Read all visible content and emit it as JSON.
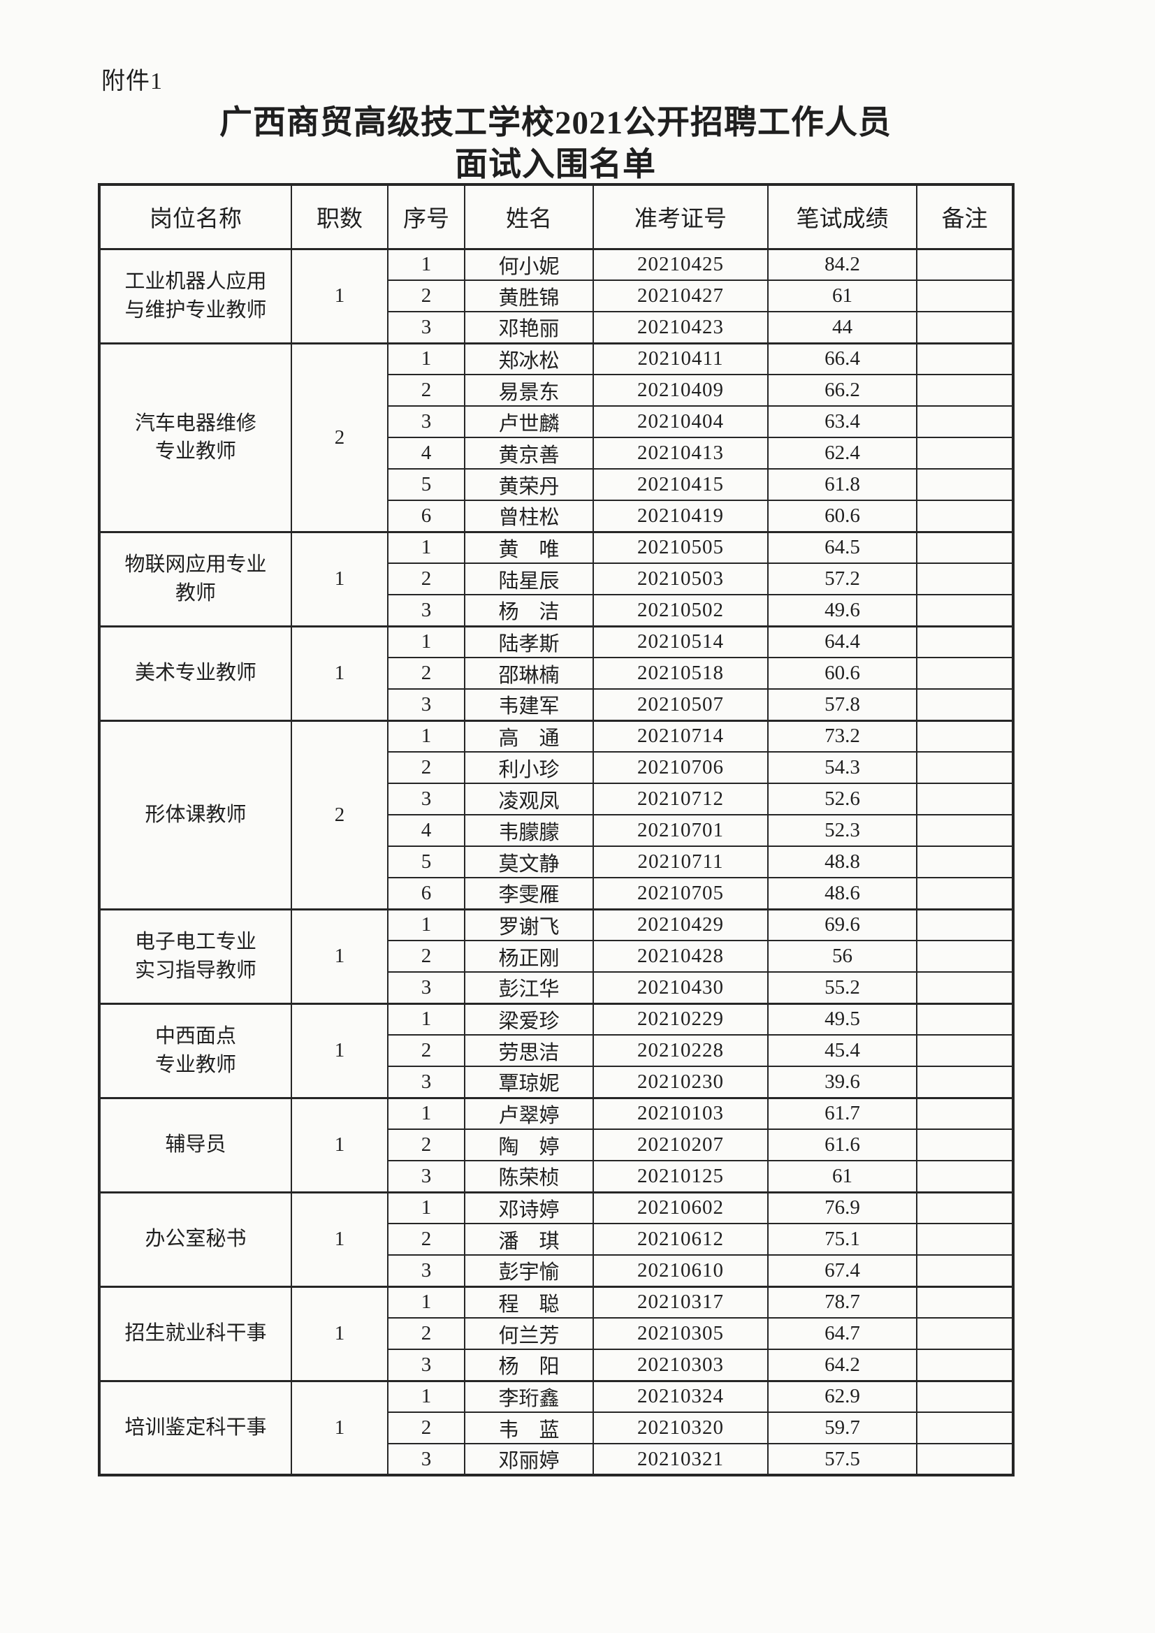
{
  "page": {
    "attachment_label": "附件1",
    "title_line1": "广西商贸高级技工学校2021公开招聘工作人员",
    "title_line2": "面试入围名单"
  },
  "colors": {
    "ink": "#1f1f1f",
    "border": "#262626",
    "paper": "#fbfbf9"
  },
  "table": {
    "headers": [
      "岗位名称",
      "职数",
      "序号",
      "姓名",
      "准考证号",
      "笔试成绩",
      "备注"
    ],
    "groups": [
      {
        "position": "工业机器人应用与维护专业教师",
        "position_lines": [
          "工业机器人应用",
          "与维护专业教师"
        ],
        "quota": "1",
        "candidates": [
          {
            "no": "1",
            "name": "何小妮",
            "ticket": "20210425",
            "score": "84.2",
            "remark": ""
          },
          {
            "no": "2",
            "name": "黄胜锦",
            "ticket": "20210427",
            "score": "61",
            "remark": ""
          },
          {
            "no": "3",
            "name": "邓艳丽",
            "ticket": "20210423",
            "score": "44",
            "remark": ""
          }
        ]
      },
      {
        "position": "汽车电器维修专业教师",
        "position_lines": [
          "汽车电器维修",
          "专业教师"
        ],
        "quota": "2",
        "candidates": [
          {
            "no": "1",
            "name": "郑冰松",
            "ticket": "20210411",
            "score": "66.4",
            "remark": ""
          },
          {
            "no": "2",
            "name": "易景东",
            "ticket": "20210409",
            "score": "66.2",
            "remark": ""
          },
          {
            "no": "3",
            "name": "卢世麟",
            "ticket": "20210404",
            "score": "63.4",
            "remark": ""
          },
          {
            "no": "4",
            "name": "黄京善",
            "ticket": "20210413",
            "score": "62.4",
            "remark": ""
          },
          {
            "no": "5",
            "name": "黄荣丹",
            "ticket": "20210415",
            "score": "61.8",
            "remark": ""
          },
          {
            "no": "6",
            "name": "曾柱松",
            "ticket": "20210419",
            "score": "60.6",
            "remark": ""
          }
        ]
      },
      {
        "position": "物联网应用专业教师",
        "position_lines": [
          "物联网应用专业",
          "教师"
        ],
        "quota": "1",
        "candidates": [
          {
            "no": "1",
            "name": "黄　唯",
            "ticket": "20210505",
            "score": "64.5",
            "remark": ""
          },
          {
            "no": "2",
            "name": "陆星辰",
            "ticket": "20210503",
            "score": "57.2",
            "remark": ""
          },
          {
            "no": "3",
            "name": "杨　洁",
            "ticket": "20210502",
            "score": "49.6",
            "remark": ""
          }
        ]
      },
      {
        "position": "美术专业教师",
        "position_lines": [
          "美术专业教师"
        ],
        "quota": "1",
        "candidates": [
          {
            "no": "1",
            "name": "陆孝斯",
            "ticket": "20210514",
            "score": "64.4",
            "remark": ""
          },
          {
            "no": "2",
            "name": "邵琳楠",
            "ticket": "20210518",
            "score": "60.6",
            "remark": ""
          },
          {
            "no": "3",
            "name": "韦建军",
            "ticket": "20210507",
            "score": "57.8",
            "remark": ""
          }
        ]
      },
      {
        "position": "形体课教师",
        "position_lines": [
          "形体课教师"
        ],
        "quota": "2",
        "candidates": [
          {
            "no": "1",
            "name": "高　通",
            "ticket": "20210714",
            "score": "73.2",
            "remark": ""
          },
          {
            "no": "2",
            "name": "利小珍",
            "ticket": "20210706",
            "score": "54.3",
            "remark": ""
          },
          {
            "no": "3",
            "name": "凌观凤",
            "ticket": "20210712",
            "score": "52.6",
            "remark": ""
          },
          {
            "no": "4",
            "name": "韦朦朦",
            "ticket": "20210701",
            "score": "52.3",
            "remark": ""
          },
          {
            "no": "5",
            "name": "莫文静",
            "ticket": "20210711",
            "score": "48.8",
            "remark": ""
          },
          {
            "no": "6",
            "name": "李雯雁",
            "ticket": "20210705",
            "score": "48.6",
            "remark": ""
          }
        ]
      },
      {
        "position": "电子电工专业实习指导教师",
        "position_lines": [
          "电子电工专业",
          "实习指导教师"
        ],
        "quota": "1",
        "candidates": [
          {
            "no": "1",
            "name": "罗谢飞",
            "ticket": "20210429",
            "score": "69.6",
            "remark": ""
          },
          {
            "no": "2",
            "name": "杨正刚",
            "ticket": "20210428",
            "score": "56",
            "remark": ""
          },
          {
            "no": "3",
            "name": "彭江华",
            "ticket": "20210430",
            "score": "55.2",
            "remark": ""
          }
        ]
      },
      {
        "position": "中西面点专业教师",
        "position_lines": [
          "中西面点",
          "专业教师"
        ],
        "quota": "1",
        "candidates": [
          {
            "no": "1",
            "name": "梁爱珍",
            "ticket": "20210229",
            "score": "49.5",
            "remark": ""
          },
          {
            "no": "2",
            "name": "劳思洁",
            "ticket": "20210228",
            "score": "45.4",
            "remark": ""
          },
          {
            "no": "3",
            "name": "覃琼妮",
            "ticket": "20210230",
            "score": "39.6",
            "remark": ""
          }
        ]
      },
      {
        "position": "辅导员",
        "position_lines": [
          "辅导员"
        ],
        "quota": "1",
        "candidates": [
          {
            "no": "1",
            "name": "卢翠婷",
            "ticket": "20210103",
            "score": "61.7",
            "remark": ""
          },
          {
            "no": "2",
            "name": "陶　婷",
            "ticket": "20210207",
            "score": "61.6",
            "remark": ""
          },
          {
            "no": "3",
            "name": "陈荣桢",
            "ticket": "20210125",
            "score": "61",
            "remark": ""
          }
        ]
      },
      {
        "position": "办公室秘书",
        "position_lines": [
          "办公室秘书"
        ],
        "quota": "1",
        "candidates": [
          {
            "no": "1",
            "name": "邓诗婷",
            "ticket": "20210602",
            "score": "76.9",
            "remark": ""
          },
          {
            "no": "2",
            "name": "潘　琪",
            "ticket": "20210612",
            "score": "75.1",
            "remark": ""
          },
          {
            "no": "3",
            "name": "彭宇愉",
            "ticket": "20210610",
            "score": "67.4",
            "remark": ""
          }
        ]
      },
      {
        "position": "招生就业科干事",
        "position_lines": [
          "招生就业科干事"
        ],
        "quota": "1",
        "candidates": [
          {
            "no": "1",
            "name": "程　聪",
            "ticket": "20210317",
            "score": "78.7",
            "remark": ""
          },
          {
            "no": "2",
            "name": "何兰芳",
            "ticket": "20210305",
            "score": "64.7",
            "remark": ""
          },
          {
            "no": "3",
            "name": "杨　阳",
            "ticket": "20210303",
            "score": "64.2",
            "remark": ""
          }
        ]
      },
      {
        "position": "培训鉴定科干事",
        "position_lines": [
          "培训鉴定科干事"
        ],
        "quota": "1",
        "candidates": [
          {
            "no": "1",
            "name": "李珩鑫",
            "ticket": "20210324",
            "score": "62.9",
            "remark": ""
          },
          {
            "no": "2",
            "name": "韦　蓝",
            "ticket": "20210320",
            "score": "59.7",
            "remark": ""
          },
          {
            "no": "3",
            "name": "邓丽婷",
            "ticket": "20210321",
            "score": "57.5",
            "remark": ""
          }
        ]
      }
    ]
  }
}
